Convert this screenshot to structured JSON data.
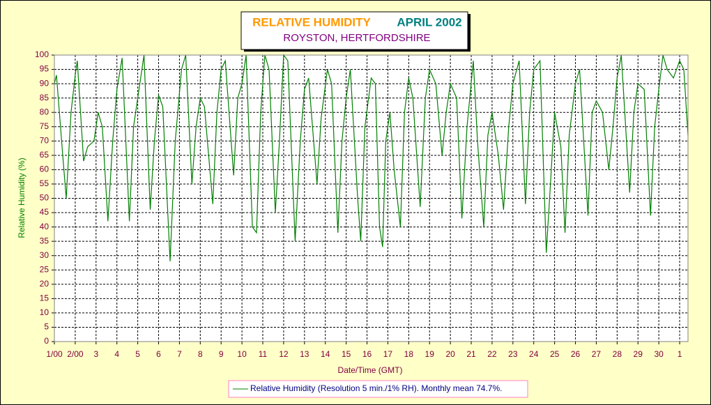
{
  "chart_data": {
    "type": "line",
    "title": "RELATIVE HUMIDITY",
    "title2": "APRIL 2002",
    "subtitle": "ROYSTON, HERTFORDSHIRE",
    "xlabel": "Date/Time (GMT)",
    "ylabel": "Relative Humidity (%)",
    "xlim": [
      0,
      30.4
    ],
    "ylim": [
      0,
      100
    ],
    "xticks": [
      {
        "value": 0,
        "label": "1/00"
      },
      {
        "value": 1,
        "label": "2/00"
      },
      {
        "value": 2,
        "label": "3"
      },
      {
        "value": 3,
        "label": "4"
      },
      {
        "value": 4,
        "label": "5"
      },
      {
        "value": 5,
        "label": "6"
      },
      {
        "value": 6,
        "label": "7"
      },
      {
        "value": 7,
        "label": "8"
      },
      {
        "value": 8,
        "label": "9"
      },
      {
        "value": 9,
        "label": "10"
      },
      {
        "value": 10,
        "label": "11"
      },
      {
        "value": 11,
        "label": "12"
      },
      {
        "value": 12,
        "label": "13"
      },
      {
        "value": 13,
        "label": "14"
      },
      {
        "value": 14,
        "label": "15"
      },
      {
        "value": 15,
        "label": "16"
      },
      {
        "value": 16,
        "label": "17"
      },
      {
        "value": 17,
        "label": "18"
      },
      {
        "value": 18,
        "label": "19"
      },
      {
        "value": 19,
        "label": "20"
      },
      {
        "value": 20,
        "label": "21"
      },
      {
        "value": 21,
        "label": "22"
      },
      {
        "value": 22,
        "label": "23"
      },
      {
        "value": 23,
        "label": "24"
      },
      {
        "value": 24,
        "label": "25"
      },
      {
        "value": 25,
        "label": "26"
      },
      {
        "value": 26,
        "label": "27"
      },
      {
        "value": 27,
        "label": "28"
      },
      {
        "value": 28,
        "label": "29"
      },
      {
        "value": 29,
        "label": "30"
      },
      {
        "value": 30,
        "label": "1"
      }
    ],
    "yticks": [
      0,
      5,
      10,
      15,
      20,
      25,
      30,
      35,
      40,
      45,
      50,
      55,
      60,
      65,
      70,
      75,
      80,
      85,
      90,
      95,
      100
    ],
    "grid": true,
    "x": [
      0,
      0.1,
      0.4,
      0.57,
      0.8,
      1.0,
      1.1,
      1.4,
      1.6,
      1.9,
      2.1,
      2.3,
      2.57,
      2.8,
      3.0,
      3.25,
      3.6,
      3.8,
      4.1,
      4.3,
      4.6,
      4.8,
      5.0,
      5.2,
      5.55,
      5.8,
      6.1,
      6.3,
      6.6,
      6.8,
      7.0,
      7.2,
      7.6,
      7.8,
      8.0,
      8.2,
      8.6,
      8.8,
      9.0,
      9.2,
      9.5,
      9.7,
      9.9,
      10.1,
      10.3,
      10.6,
      10.8,
      11.0,
      11.2,
      11.55,
      11.8,
      12.0,
      12.2,
      12.6,
      12.8,
      13.1,
      13.3,
      13.6,
      13.8,
      14.0,
      14.2,
      14.55,
      14.7,
      14.9,
      15.2,
      15.4,
      15.6,
      15.75,
      15.9,
      16.1,
      16.3,
      16.6,
      16.8,
      17.0,
      17.2,
      17.55,
      17.8,
      18.0,
      18.3,
      18.6,
      18.8,
      19.0,
      19.3,
      19.55,
      19.8,
      20.1,
      20.3,
      20.6,
      20.8,
      21.0,
      21.3,
      21.55,
      21.8,
      22.0,
      22.3,
      22.6,
      22.8,
      23.0,
      23.3,
      23.6,
      23.8,
      24.0,
      24.3,
      24.5,
      24.7,
      25.0,
      25.2,
      25.6,
      25.8,
      26.0,
      26.3,
      26.6,
      26.8,
      27.0,
      27.2,
      27.6,
      27.8,
      28.0,
      28.3,
      28.6,
      28.8,
      29.0,
      29.2,
      29.4,
      29.7,
      30.0,
      30.2,
      30.4
    ],
    "series": [
      {
        "name": "Relative Humidity (Resolution 5 min./1% RH). Monthly mean 74.7%.",
        "color": "#008000",
        "values": [
          90,
          93,
          65,
          50,
          80,
          93,
          98,
          63,
          68,
          70,
          80,
          75,
          42,
          70,
          88,
          99,
          42,
          75,
          90,
          100,
          46,
          70,
          86,
          82,
          28,
          70,
          95,
          100,
          55,
          75,
          85,
          82,
          48,
          80,
          95,
          98,
          58,
          85,
          90,
          100,
          40,
          38,
          80,
          100,
          95,
          45,
          70,
          100,
          98,
          35,
          70,
          88,
          92,
          55,
          78,
          95,
          90,
          38,
          70,
          85,
          95,
          50,
          35,
          75,
          92,
          90,
          40,
          33,
          70,
          80,
          60,
          40,
          80,
          92,
          85,
          47,
          85,
          95,
          90,
          65,
          80,
          90,
          85,
          43,
          75,
          98,
          70,
          40,
          72,
          80,
          65,
          46,
          75,
          90,
          98,
          48,
          80,
          95,
          98,
          31,
          55,
          80,
          68,
          38,
          72,
          90,
          95,
          44,
          80,
          84,
          80,
          60,
          75,
          92,
          100,
          52,
          80,
          90,
          88,
          44,
          75,
          88,
          100,
          95,
          92,
          98,
          95,
          72
        ]
      }
    ]
  }
}
